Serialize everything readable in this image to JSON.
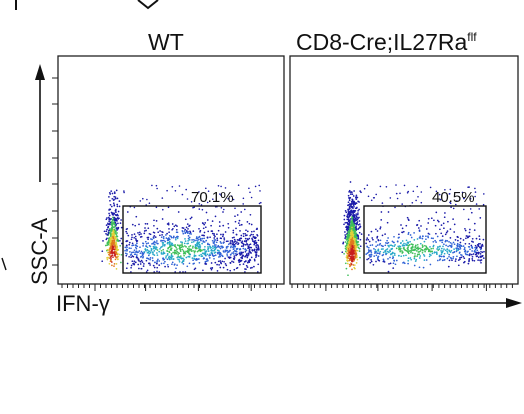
{
  "chart_data": [
    {
      "type": "scatter",
      "plot": "flow-cytometry-density",
      "title": "WT",
      "xlabel": "IFN-γ",
      "ylabel": "SSC-A",
      "gate": {
        "label": "70.1%",
        "value": 70.1
      },
      "colors": [
        "#1a1aa8",
        "#2f62d6",
        "#27a8c8",
        "#3fbf5a",
        "#e0d23a",
        "#e0781f",
        "#c81e1e"
      ]
    },
    {
      "type": "scatter",
      "plot": "flow-cytometry-density",
      "title": "CD8-Cre;IL27Ra",
      "title_sup": "flf",
      "xlabel": "IFN-γ",
      "ylabel": "SSC-A",
      "gate": {
        "label": "40.5%",
        "value": 40.5
      },
      "colors": [
        "#1a1aa8",
        "#2f62d6",
        "#27a8c8",
        "#3fbf5a",
        "#e0d23a",
        "#e0781f",
        "#c81e1e"
      ]
    }
  ]
}
